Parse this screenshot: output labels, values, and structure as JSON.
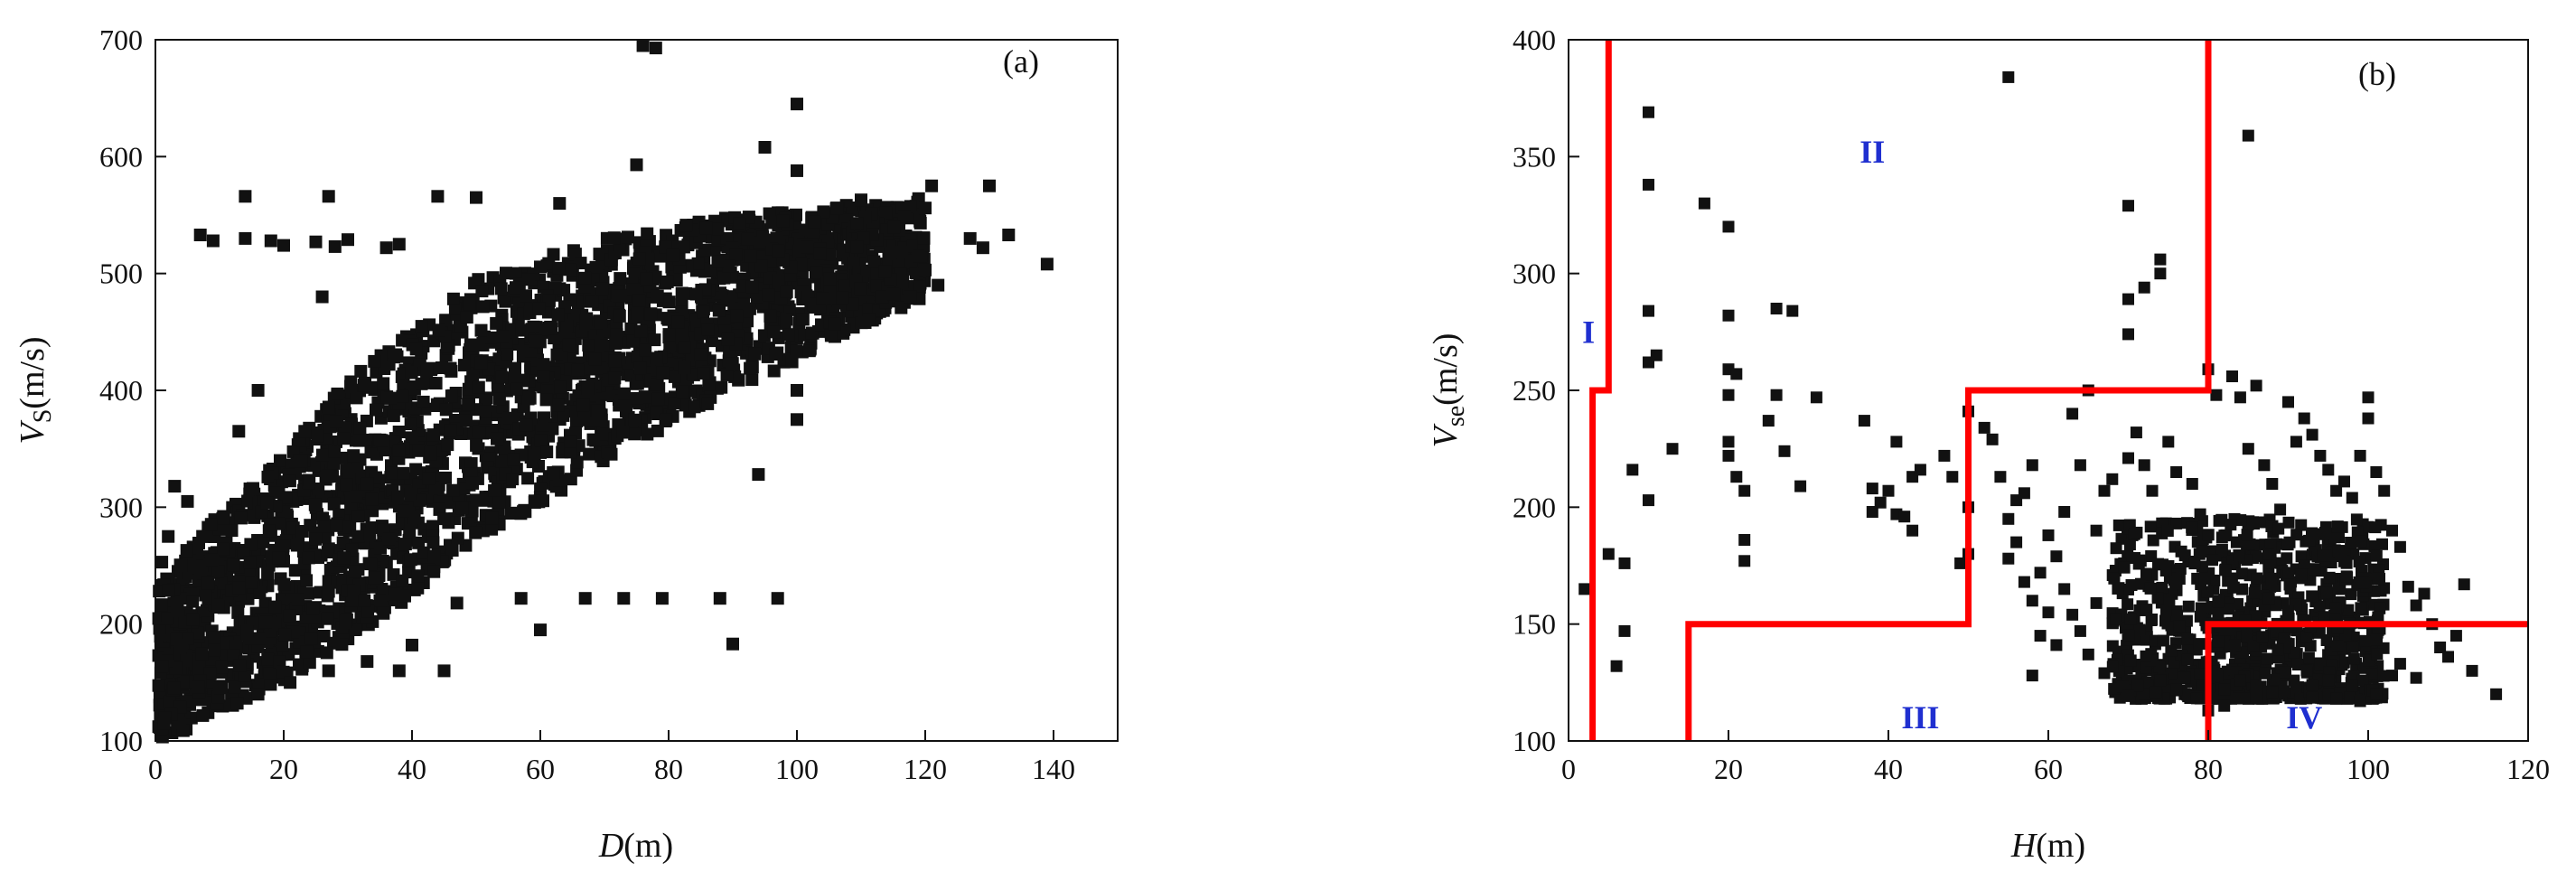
{
  "chart_data": [
    {
      "panel": "(a)",
      "type": "scatter",
      "panel_label": "(a)",
      "xlabel": "D",
      "xlabel_unit": "(m)",
      "ylabel": "V",
      "ylabel_sub": "S",
      "ylabel_unit": "(m/s)",
      "xlim": [
        0,
        150
      ],
      "ylim": [
        100,
        700
      ],
      "xticks": [
        0,
        20,
        40,
        60,
        80,
        100,
        120,
        140
      ],
      "yticks": [
        100,
        200,
        300,
        400,
        500,
        600,
        700
      ],
      "grid": false,
      "marker": "square",
      "marker_color": "#111111",
      "dense_band": [
        {
          "x": 1,
          "y_min": 102,
          "y_max": 235
        },
        {
          "x": 5,
          "y_min": 110,
          "y_max": 265
        },
        {
          "x": 10,
          "y_min": 125,
          "y_max": 295
        },
        {
          "x": 20,
          "y_min": 150,
          "y_max": 345
        },
        {
          "x": 30,
          "y_min": 185,
          "y_max": 410
        },
        {
          "x": 40,
          "y_min": 225,
          "y_max": 455
        },
        {
          "x": 50,
          "y_min": 270,
          "y_max": 495
        },
        {
          "x": 60,
          "y_min": 300,
          "y_max": 520
        },
        {
          "x": 70,
          "y_min": 340,
          "y_max": 530
        },
        {
          "x": 80,
          "y_min": 370,
          "y_max": 540
        },
        {
          "x": 90,
          "y_min": 400,
          "y_max": 550
        },
        {
          "x": 100,
          "y_min": 425,
          "y_max": 555
        },
        {
          "x": 110,
          "y_min": 455,
          "y_max": 560
        },
        {
          "x": 120,
          "y_min": 480,
          "y_max": 565
        }
      ],
      "points": [
        {
          "x": 76,
          "y": 695
        },
        {
          "x": 78,
          "y": 693
        },
        {
          "x": 100,
          "y": 645
        },
        {
          "x": 95,
          "y": 608
        },
        {
          "x": 75,
          "y": 593
        },
        {
          "x": 100,
          "y": 588
        },
        {
          "x": 121,
          "y": 575
        },
        {
          "x": 130,
          "y": 575
        },
        {
          "x": 14,
          "y": 566
        },
        {
          "x": 27,
          "y": 566
        },
        {
          "x": 44,
          "y": 566
        },
        {
          "x": 50,
          "y": 565
        },
        {
          "x": 63,
          "y": 560
        },
        {
          "x": 110,
          "y": 563
        },
        {
          "x": 120,
          "y": 556
        },
        {
          "x": 133,
          "y": 533
        },
        {
          "x": 127,
          "y": 530
        },
        {
          "x": 7,
          "y": 533
        },
        {
          "x": 9,
          "y": 528
        },
        {
          "x": 14,
          "y": 530
        },
        {
          "x": 18,
          "y": 528
        },
        {
          "x": 20,
          "y": 524
        },
        {
          "x": 25,
          "y": 527
        },
        {
          "x": 28,
          "y": 523
        },
        {
          "x": 30,
          "y": 529
        },
        {
          "x": 36,
          "y": 522
        },
        {
          "x": 38,
          "y": 525
        },
        {
          "x": 139,
          "y": 508
        },
        {
          "x": 129,
          "y": 522
        },
        {
          "x": 122,
          "y": 490
        },
        {
          "x": 115,
          "y": 482
        },
        {
          "x": 120,
          "y": 503
        },
        {
          "x": 26,
          "y": 480
        },
        {
          "x": 16,
          "y": 400
        },
        {
          "x": 13,
          "y": 365
        },
        {
          "x": 100,
          "y": 400
        },
        {
          "x": 100,
          "y": 375
        },
        {
          "x": 94,
          "y": 328
        },
        {
          "x": 57,
          "y": 222
        },
        {
          "x": 60,
          "y": 195
        },
        {
          "x": 67,
          "y": 222
        },
        {
          "x": 73,
          "y": 222
        },
        {
          "x": 79,
          "y": 222
        },
        {
          "x": 88,
          "y": 222
        },
        {
          "x": 97,
          "y": 222
        },
        {
          "x": 90,
          "y": 183
        },
        {
          "x": 47,
          "y": 218
        },
        {
          "x": 40,
          "y": 182
        },
        {
          "x": 38,
          "y": 160
        },
        {
          "x": 45,
          "y": 160
        },
        {
          "x": 33,
          "y": 168
        },
        {
          "x": 27,
          "y": 160
        },
        {
          "x": 21,
          "y": 150
        },
        {
          "x": 16,
          "y": 140
        },
        {
          "x": 3,
          "y": 318
        },
        {
          "x": 5,
          "y": 305
        },
        {
          "x": 2,
          "y": 275
        },
        {
          "x": 1,
          "y": 253
        },
        {
          "x": 4,
          "y": 250
        }
      ]
    },
    {
      "panel": "(b)",
      "type": "scatter",
      "panel_label": "(b)",
      "xlabel": "H",
      "xlabel_unit": "(m)",
      "ylabel": "V",
      "ylabel_sub": "se",
      "ylabel_unit": "(m/s)",
      "xlim": [
        0,
        120
      ],
      "ylim": [
        100,
        400
      ],
      "xticks": [
        0,
        20,
        40,
        60,
        80,
        100,
        120
      ],
      "yticks": [
        100,
        150,
        200,
        250,
        300,
        350,
        400
      ],
      "grid": false,
      "marker": "square",
      "marker_color": "#111111",
      "boundary_color": "#ff0000",
      "region_label_color": "#1f2fd0",
      "boundaries": [
        {
          "x": [
            3,
            3,
            5,
            5
          ],
          "y": [
            100,
            250,
            250,
            400
          ]
        },
        {
          "x": [
            15,
            15,
            50,
            50,
            80,
            80
          ],
          "y": [
            100,
            150,
            150,
            250,
            250,
            400
          ]
        },
        {
          "x": [
            80,
            80,
            120
          ],
          "y": [
            100,
            150,
            150
          ]
        }
      ],
      "region_labels": [
        {
          "text": "I",
          "x": 2.5,
          "y": 275
        },
        {
          "text": "II",
          "x": 38,
          "y": 352
        },
        {
          "text": "III",
          "x": 44,
          "y": 110
        },
        {
          "text": "IV",
          "x": 92,
          "y": 110
        }
      ],
      "dense_cluster": {
        "x_min": 68,
        "x_max": 102,
        "y_min": 118,
        "y_max": 195
      },
      "points": [
        {
          "x": 2,
          "y": 165
        },
        {
          "x": 5,
          "y": 180
        },
        {
          "x": 6,
          "y": 132
        },
        {
          "x": 7,
          "y": 147
        },
        {
          "x": 7,
          "y": 176
        },
        {
          "x": 10,
          "y": 369
        },
        {
          "x": 10,
          "y": 338
        },
        {
          "x": 10,
          "y": 284
        },
        {
          "x": 10,
          "y": 262
        },
        {
          "x": 11,
          "y": 265
        },
        {
          "x": 8,
          "y": 216
        },
        {
          "x": 10,
          "y": 203
        },
        {
          "x": 13,
          "y": 225
        },
        {
          "x": 17,
          "y": 330
        },
        {
          "x": 20,
          "y": 320
        },
        {
          "x": 20,
          "y": 282
        },
        {
          "x": 20,
          "y": 259
        },
        {
          "x": 20,
          "y": 248
        },
        {
          "x": 21,
          "y": 257
        },
        {
          "x": 20,
          "y": 228
        },
        {
          "x": 21,
          "y": 213
        },
        {
          "x": 22,
          "y": 207
        },
        {
          "x": 22,
          "y": 186
        },
        {
          "x": 22,
          "y": 177
        },
        {
          "x": 20,
          "y": 222
        },
        {
          "x": 26,
          "y": 285
        },
        {
          "x": 28,
          "y": 284
        },
        {
          "x": 26,
          "y": 248
        },
        {
          "x": 25,
          "y": 237
        },
        {
          "x": 27,
          "y": 224
        },
        {
          "x": 29,
          "y": 209
        },
        {
          "x": 31,
          "y": 247
        },
        {
          "x": 37,
          "y": 237
        },
        {
          "x": 38,
          "y": 208
        },
        {
          "x": 38,
          "y": 198
        },
        {
          "x": 39,
          "y": 202
        },
        {
          "x": 40,
          "y": 207
        },
        {
          "x": 41,
          "y": 197
        },
        {
          "x": 41,
          "y": 228
        },
        {
          "x": 42,
          "y": 196
        },
        {
          "x": 43,
          "y": 190
        },
        {
          "x": 43,
          "y": 213
        },
        {
          "x": 44,
          "y": 216
        },
        {
          "x": 47,
          "y": 222
        },
        {
          "x": 48,
          "y": 213
        },
        {
          "x": 49,
          "y": 176
        },
        {
          "x": 50,
          "y": 180
        },
        {
          "x": 50,
          "y": 200
        },
        {
          "x": 50,
          "y": 241
        },
        {
          "x": 55,
          "y": 384
        },
        {
          "x": 52,
          "y": 234
        },
        {
          "x": 53,
          "y": 229
        },
        {
          "x": 54,
          "y": 213
        },
        {
          "x": 55,
          "y": 195
        },
        {
          "x": 56,
          "y": 203
        },
        {
          "x": 57,
          "y": 206
        },
        {
          "x": 58,
          "y": 218
        },
        {
          "x": 56,
          "y": 185
        },
        {
          "x": 55,
          "y": 178
        },
        {
          "x": 57,
          "y": 168
        },
        {
          "x": 58,
          "y": 160
        },
        {
          "x": 59,
          "y": 172
        },
        {
          "x": 60,
          "y": 188
        },
        {
          "x": 61,
          "y": 179
        },
        {
          "x": 62,
          "y": 165
        },
        {
          "x": 60,
          "y": 155
        },
        {
          "x": 59,
          "y": 145
        },
        {
          "x": 61,
          "y": 141
        },
        {
          "x": 63,
          "y": 154
        },
        {
          "x": 64,
          "y": 147
        },
        {
          "x": 58,
          "y": 128
        },
        {
          "x": 62,
          "y": 198
        },
        {
          "x": 63,
          "y": 240
        },
        {
          "x": 65,
          "y": 250
        },
        {
          "x": 64,
          "y": 218
        },
        {
          "x": 66,
          "y": 190
        },
        {
          "x": 67,
          "y": 207
        },
        {
          "x": 68,
          "y": 212
        },
        {
          "x": 66,
          "y": 159
        },
        {
          "x": 65,
          "y": 137
        },
        {
          "x": 67,
          "y": 129
        },
        {
          "x": 70,
          "y": 329
        },
        {
          "x": 70,
          "y": 289
        },
        {
          "x": 70,
          "y": 274
        },
        {
          "x": 72,
          "y": 294
        },
        {
          "x": 74,
          "y": 306
        },
        {
          "x": 74,
          "y": 300
        },
        {
          "x": 71,
          "y": 232
        },
        {
          "x": 70,
          "y": 221
        },
        {
          "x": 72,
          "y": 218
        },
        {
          "x": 73,
          "y": 207
        },
        {
          "x": 75,
          "y": 228
        },
        {
          "x": 76,
          "y": 215
        },
        {
          "x": 78,
          "y": 210
        },
        {
          "x": 79,
          "y": 197
        },
        {
          "x": 80,
          "y": 259
        },
        {
          "x": 81,
          "y": 248
        },
        {
          "x": 83,
          "y": 256
        },
        {
          "x": 84,
          "y": 247
        },
        {
          "x": 85,
          "y": 359
        },
        {
          "x": 86,
          "y": 252
        },
        {
          "x": 85,
          "y": 225
        },
        {
          "x": 87,
          "y": 218
        },
        {
          "x": 88,
          "y": 210
        },
        {
          "x": 89,
          "y": 199
        },
        {
          "x": 90,
          "y": 245
        },
        {
          "x": 91,
          "y": 228
        },
        {
          "x": 92,
          "y": 238
        },
        {
          "x": 93,
          "y": 231
        },
        {
          "x": 94,
          "y": 222
        },
        {
          "x": 95,
          "y": 216
        },
        {
          "x": 96,
          "y": 207
        },
        {
          "x": 97,
          "y": 211
        },
        {
          "x": 98,
          "y": 204
        },
        {
          "x": 99,
          "y": 222
        },
        {
          "x": 100,
          "y": 247
        },
        {
          "x": 100,
          "y": 238
        },
        {
          "x": 101,
          "y": 215
        },
        {
          "x": 102,
          "y": 207
        },
        {
          "x": 103,
          "y": 190
        },
        {
          "x": 104,
          "y": 183
        },
        {
          "x": 105,
          "y": 166
        },
        {
          "x": 106,
          "y": 158
        },
        {
          "x": 107,
          "y": 163
        },
        {
          "x": 108,
          "y": 150
        },
        {
          "x": 109,
          "y": 140
        },
        {
          "x": 110,
          "y": 136
        },
        {
          "x": 111,
          "y": 145
        },
        {
          "x": 112,
          "y": 167
        },
        {
          "x": 113,
          "y": 130
        },
        {
          "x": 116,
          "y": 120
        },
        {
          "x": 103,
          "y": 128
        },
        {
          "x": 104,
          "y": 133
        },
        {
          "x": 106,
          "y": 127
        },
        {
          "x": 101,
          "y": 120
        },
        {
          "x": 99,
          "y": 117
        },
        {
          "x": 96,
          "y": 118
        },
        {
          "x": 82,
          "y": 115
        },
        {
          "x": 80,
          "y": 113
        },
        {
          "x": 76,
          "y": 122
        },
        {
          "x": 74,
          "y": 126
        },
        {
          "x": 77,
          "y": 127
        },
        {
          "x": 82,
          "y": 122
        },
        {
          "x": 84,
          "y": 126
        },
        {
          "x": 86,
          "y": 123
        },
        {
          "x": 88,
          "y": 121
        },
        {
          "x": 91,
          "y": 123
        },
        {
          "x": 93,
          "y": 124
        },
        {
          "x": 95,
          "y": 126
        }
      ]
    }
  ]
}
